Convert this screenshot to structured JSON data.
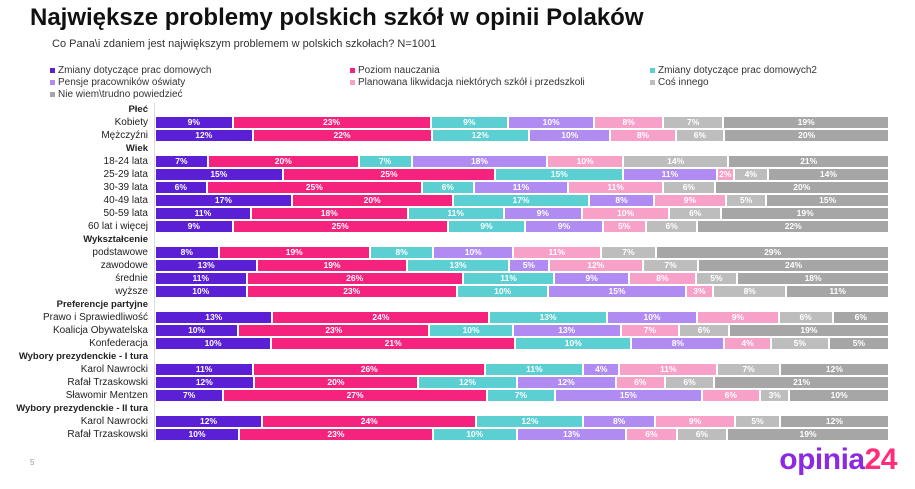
{
  "title": "Największe problemy polskich szkół w opinii Polaków",
  "subtitle": "Co Pana\\i zdaniem jest największym problemem w polskich szkołach? N=1001",
  "page_number": "5",
  "logo": {
    "text": "opinia",
    "accent": "24"
  },
  "chart_data": {
    "type": "bar",
    "orientation": "horizontal-stacked-100",
    "series": [
      {
        "name": "Zmiany dotyczące prac domowych",
        "color": "#5b1fd6"
      },
      {
        "name": "Poziom nauczania",
        "color": "#f5237e"
      },
      {
        "name": "Zmiany dotyczące prac domowych2",
        "color": "#5ccfd3"
      },
      {
        "name": "Pensje pracowników oświaty",
        "color": "#b08cf2"
      },
      {
        "name": "Planowana likwidacja niektórych szkół i przedszkoli",
        "color": "#f7a1c9"
      },
      {
        "name": "Coś innego",
        "color": "#bdbdbd"
      },
      {
        "name": "Nie wiem\\trudno powiedzieć",
        "color": "#a6a6a6"
      }
    ],
    "rows": [
      {
        "header": "Płeć"
      },
      {
        "label": "Kobiety",
        "values": [
          9,
          23,
          9,
          10,
          8,
          7,
          19
        ]
      },
      {
        "label": "Mężczyźni",
        "values": [
          12,
          22,
          12,
          10,
          8,
          6,
          20
        ]
      },
      {
        "header": "Wiek"
      },
      {
        "label": "18-24 lata",
        "values": [
          7,
          20,
          7,
          18,
          10,
          14,
          21
        ]
      },
      {
        "label": "25-29 lata",
        "values": [
          15,
          25,
          15,
          11,
          2,
          4,
          14
        ]
      },
      {
        "label": "30-39 lata",
        "values": [
          6,
          25,
          6,
          11,
          11,
          6,
          20
        ]
      },
      {
        "label": "40-49 lata",
        "values": [
          17,
          20,
          17,
          8,
          9,
          5,
          15
        ]
      },
      {
        "label": "50-59 lata",
        "values": [
          11,
          18,
          11,
          9,
          10,
          6,
          19
        ]
      },
      {
        "label": "60 lat i więcej",
        "values": [
          9,
          25,
          9,
          9,
          5,
          6,
          22
        ]
      },
      {
        "header": "Wykształcenie"
      },
      {
        "label": "podstawowe",
        "values": [
          8,
          19,
          8,
          10,
          11,
          7,
          29
        ]
      },
      {
        "label": "zawodowe",
        "values": [
          13,
          19,
          13,
          5,
          12,
          7,
          24
        ]
      },
      {
        "label": "średnie",
        "values": [
          11,
          26,
          11,
          9,
          8,
          5,
          18
        ]
      },
      {
        "label": "wyższe",
        "values": [
          10,
          23,
          10,
          15,
          3,
          8,
          11
        ]
      },
      {
        "header": "Preferencje partyjne"
      },
      {
        "label": "Prawo i Sprawiedliwość",
        "values": [
          13,
          24,
          13,
          10,
          9,
          6,
          6
        ]
      },
      {
        "label": "Koalicja Obywatelska",
        "values": [
          10,
          23,
          10,
          13,
          7,
          6,
          19
        ]
      },
      {
        "label": "Konfederacja",
        "values": [
          10,
          21,
          10,
          8,
          4,
          5,
          5
        ]
      },
      {
        "header": "Wybory prezydenckie - I tura"
      },
      {
        "label": "Karol Nawrocki",
        "values": [
          11,
          26,
          11,
          4,
          11,
          7,
          12
        ]
      },
      {
        "label": "Rafał Trzaskowski",
        "values": [
          12,
          20,
          12,
          12,
          6,
          6,
          21
        ]
      },
      {
        "label": "Sławomir Mentzen",
        "values": [
          7,
          27,
          7,
          15,
          6,
          3,
          10
        ]
      },
      {
        "header": "Wybory prezydenckie - II tura"
      },
      {
        "label": "Karol Nawrocki",
        "values": [
          12,
          24,
          12,
          8,
          9,
          5,
          12
        ]
      },
      {
        "label": "Rafał Trzaskowski",
        "values": [
          10,
          23,
          10,
          13,
          6,
          6,
          19
        ]
      }
    ]
  }
}
